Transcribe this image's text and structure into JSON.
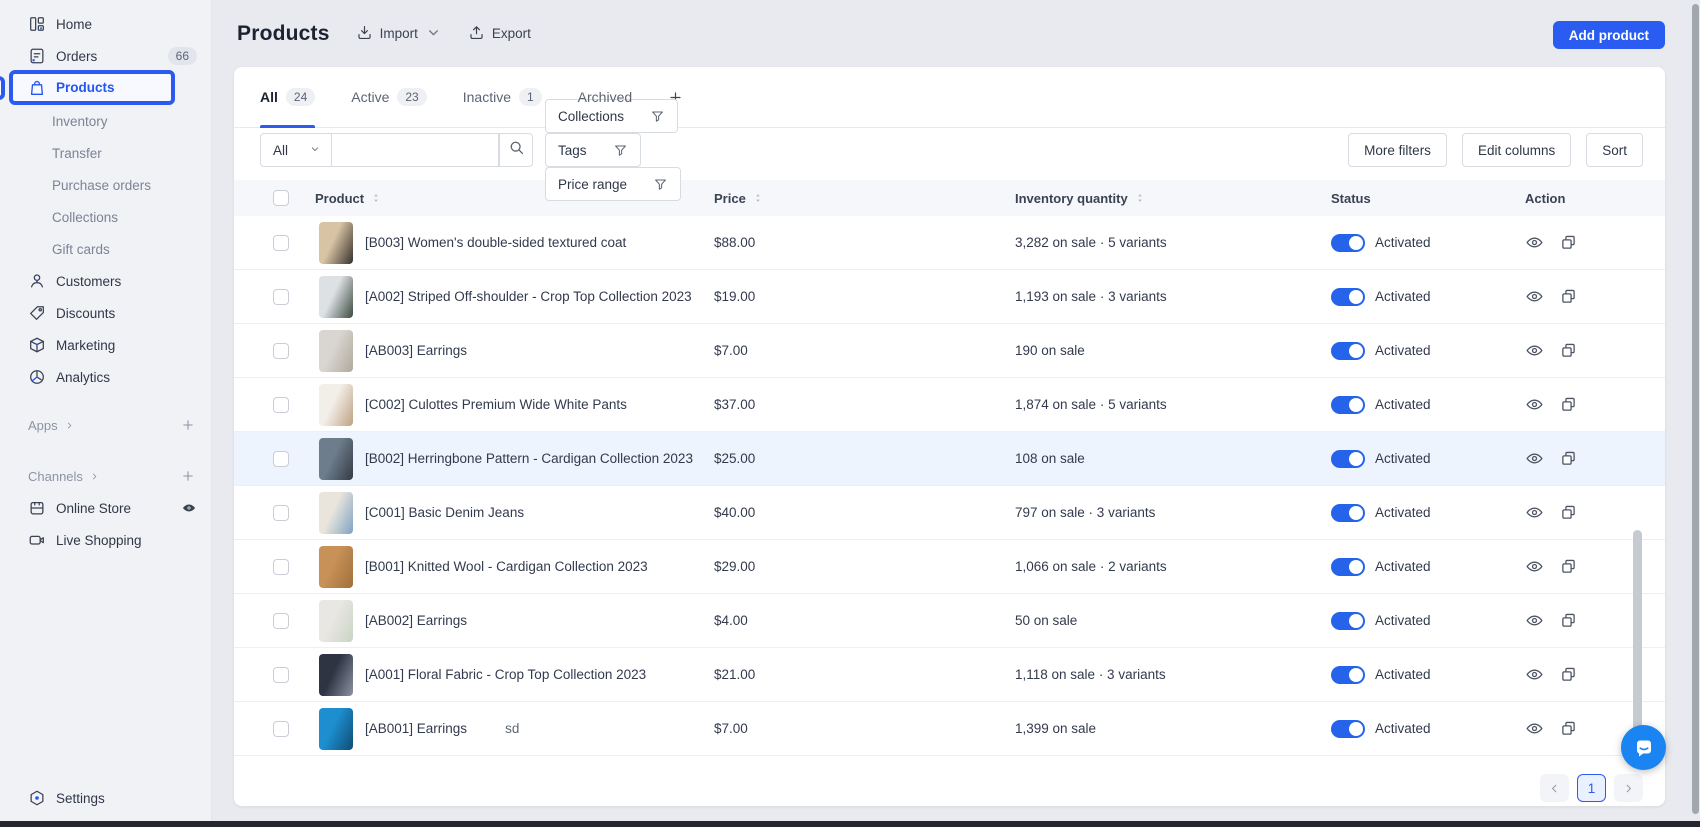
{
  "sidebar": {
    "top_items": [
      {
        "label": "Home",
        "icon": "home"
      },
      {
        "label": "Orders",
        "icon": "orders",
        "badge": "66"
      }
    ],
    "active_item": {
      "label": "Products",
      "icon": "bag"
    },
    "product_subitems": [
      "Inventory",
      "Transfer",
      "Purchase orders",
      "Collections",
      "Gift cards"
    ],
    "mid_items": [
      {
        "label": "Customers",
        "icon": "customers"
      },
      {
        "label": "Discounts",
        "icon": "discounts"
      },
      {
        "label": "Marketing",
        "icon": "marketing"
      },
      {
        "label": "Analytics",
        "icon": "analytics"
      }
    ],
    "apps_label": "Apps",
    "channels_label": "Channels",
    "channel_items": [
      {
        "label": "Online Store",
        "icon": "store",
        "trailing": "eye"
      },
      {
        "label": "Live Shopping",
        "icon": "camera"
      }
    ],
    "settings_label": "Settings"
  },
  "header": {
    "title": "Products",
    "import_label": "Import",
    "export_label": "Export",
    "add_product_label": "Add product"
  },
  "tabs": [
    {
      "label": "All",
      "count": "24",
      "active": true
    },
    {
      "label": "Active",
      "count": "23"
    },
    {
      "label": "Inactive",
      "count": "1"
    },
    {
      "label": "Archived"
    }
  ],
  "filter_bar": {
    "scope_select_value": "All",
    "search_value": "",
    "chips": [
      "Collections",
      "Tags",
      "Price range"
    ],
    "more_filters_label": "More filters",
    "edit_columns_label": "Edit columns",
    "sort_label": "Sort"
  },
  "table": {
    "columns": [
      {
        "label": "Product",
        "sortable": true
      },
      {
        "label": "Price",
        "sortable": true
      },
      {
        "label": "Inventory quantity",
        "sortable": true
      },
      {
        "label": "Status",
        "sortable": false
      },
      {
        "label": "Action",
        "sortable": false
      }
    ],
    "rows": [
      {
        "name": "[B003] Women's double-sided textured coat",
        "price": "$88.00",
        "inventory": "3,282 on sale · 5 variants",
        "status": "Activated",
        "thumb": [
          "#d8c3a4",
          "#35302b"
        ]
      },
      {
        "name": "[A002] Striped Off-shoulder - Crop Top Collection 2023",
        "price": "$19.00",
        "inventory": "1,193 on sale · 3 variants",
        "status": "Activated",
        "thumb": [
          "#dde1e4",
          "#3c4a40"
        ]
      },
      {
        "name": "[AB003] Earrings",
        "price": "$7.00",
        "inventory": "190 on sale",
        "status": "Activated",
        "thumb": [
          "#d9d6d1",
          "#b0a89c"
        ]
      },
      {
        "name": "[C002] Culottes Premium Wide White Pants",
        "price": "$37.00",
        "inventory": "1,874 on sale · 5 variants",
        "status": "Activated",
        "thumb": [
          "#f2efe9",
          "#bfa183"
        ]
      },
      {
        "name": "[B002] Herringbone Pattern - Cardigan Collection 2023",
        "price": "$25.00",
        "inventory": "108 on sale",
        "status": "Activated",
        "highlighted": true,
        "thumb": [
          "#6e7d8c",
          "#333b44"
        ]
      },
      {
        "name": "[C001] Basic Denim Jeans",
        "price": "$40.00",
        "inventory": "797 on sale · 3 variants",
        "status": "Activated",
        "thumb": [
          "#e9e5dc",
          "#7fa3c4"
        ]
      },
      {
        "name": "[B001] Knitted Wool - Cardigan Collection 2023",
        "price": "$29.00",
        "inventory": "1,066 on sale · 2 variants",
        "status": "Activated",
        "thumb": [
          "#c79157",
          "#a06f3c"
        ]
      },
      {
        "name": "[AB002] Earrings",
        "price": "$4.00",
        "inventory": "50 on sale",
        "status": "Activated",
        "thumb": [
          "#e9e7e3",
          "#c9d4c5"
        ]
      },
      {
        "name": "[A001] Floral Fabric - Crop Top Collection 2023",
        "price": "$21.00",
        "inventory": "1,118 on sale · 3 variants",
        "status": "Activated",
        "thumb": [
          "#2e3442",
          "#8d93a5"
        ]
      },
      {
        "name": "[AB001] Earrings",
        "extra": "sd",
        "price": "$7.00",
        "inventory": "1,399 on sale",
        "status": "Activated",
        "thumb": [
          "#1d8ecf",
          "#0f4d74"
        ]
      }
    ]
  },
  "pagination": {
    "current_page": "1"
  },
  "colors": {
    "primary": "#2a5cf2",
    "toggle_on": "#2563eb",
    "highlight_row": "#edf4fd"
  }
}
